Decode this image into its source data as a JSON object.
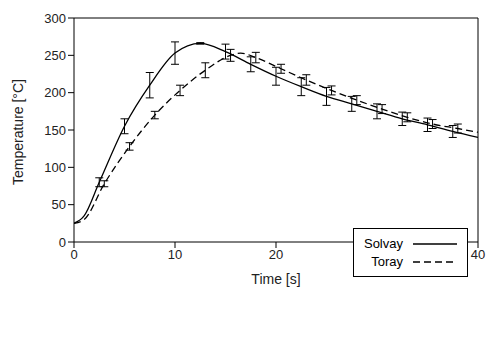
{
  "chart_data": {
    "type": "line",
    "x_label": "Time [s]",
    "y_label": "Temperature [°C]",
    "xlim": [
      0,
      40
    ],
    "xticks": [
      0,
      10,
      20,
      30,
      40
    ],
    "ylim": [
      0,
      300
    ],
    "yticks": [
      0,
      50,
      100,
      150,
      200,
      250,
      300
    ],
    "legend": "lower right",
    "series": [
      {
        "name": "Solvay",
        "color": "#000000",
        "line_style": "solid",
        "x": [
          0,
          1,
          2.5,
          5,
          7.5,
          10,
          12.5,
          15,
          17.5,
          20,
          22.5,
          25,
          27.5,
          30,
          32.5,
          35,
          37.5,
          40
        ],
        "values": [
          25,
          35,
          80,
          155,
          210,
          253,
          266,
          255,
          238,
          222,
          208,
          195,
          185,
          175,
          165,
          157,
          148,
          140
        ],
        "errors": [
          null,
          null,
          6,
          10,
          17,
          15,
          1,
          10,
          10,
          12,
          12,
          12,
          10,
          10,
          9,
          9,
          8,
          null
        ]
      },
      {
        "name": "Toray",
        "color": "#000000",
        "line_style": "dashed",
        "x": [
          0,
          1,
          3,
          5.5,
          8,
          10.5,
          13,
          15.5,
          16.5,
          18,
          20.5,
          23,
          25.5,
          28,
          30.5,
          33,
          35.5,
          38,
          40
        ],
        "values": [
          25,
          30,
          78,
          128,
          170,
          203,
          230,
          250,
          253,
          247,
          232,
          217,
          203,
          190,
          178,
          167,
          158,
          152,
          147
        ],
        "errors": [
          null,
          null,
          4,
          5,
          5,
          7,
          10,
          8,
          null,
          7,
          6,
          7,
          6,
          6,
          6,
          6,
          6,
          6,
          null
        ]
      }
    ]
  }
}
